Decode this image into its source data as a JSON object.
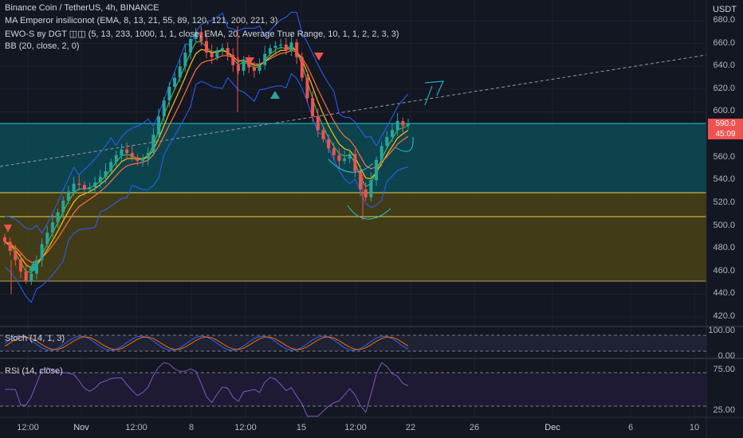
{
  "header": {
    "title": "Binance Coin / TetherUS, 4h, BINANCE",
    "indicator1": "MA Emperor insiliconot (EMA, 8, 13, 21, 55, 89, 120, 121, 200, 221, 3)",
    "indicator2": "EWO-S вy DGT ◫◫ (5, 13, 233, 1000, 1, 1, close, EMA, 20, Average True Range, 10, 1, 1, 2, 2, 3, 3)",
    "indicator3": "BB (20, close, 2, 0)"
  },
  "price_axis": {
    "currency": "USDT",
    "ticks": [
      "680.0",
      "660.0",
      "640.0",
      "620.0",
      "600.0",
      "580.0",
      "560.0",
      "540.0",
      "520.0",
      "500.0",
      "480.0",
      "460.0",
      "440.0",
      "420.0"
    ],
    "last_price": "590.0",
    "countdown": "45:09"
  },
  "stoch_pane": {
    "label": "Stoch (14, 1, 3)",
    "ticks": [
      "100.00",
      "0.00"
    ]
  },
  "rsi_pane": {
    "label": "RSI (14, close)",
    "ticks": [
      "75.00",
      "25.00"
    ]
  },
  "time_axis": {
    "ticks": [
      "12:00",
      "Nov",
      "12:00",
      "8",
      "12:00",
      "15",
      "12:00",
      "22",
      "26",
      "Dec",
      "6",
      "10"
    ]
  },
  "colors": {
    "up": "#26a69a",
    "down": "#ef5350",
    "accent": "#2962ff",
    "zone_top": "#0f5f6a",
    "zone_bottom": "#6b5a12"
  },
  "chart_data": {
    "type": "candlestick",
    "symbol": "BNBUSDT",
    "interval": "4h",
    "ylim": [
      410,
      690
    ],
    "zones": [
      {
        "from": 530,
        "to": 590,
        "color": "teal"
      },
      {
        "from": 453,
        "to": 530,
        "color": "olive"
      }
    ],
    "horizontal_levels": [
      590,
      530,
      509,
      453
    ],
    "close_series": [
      486,
      478,
      470,
      460,
      452,
      458,
      470,
      484,
      494,
      503,
      512,
      522,
      530,
      537,
      536,
      532,
      534,
      538,
      543,
      548,
      556,
      562,
      567,
      564,
      560,
      557,
      559,
      564,
      580,
      596,
      610,
      622,
      630,
      640,
      652,
      664,
      670,
      662,
      652,
      648,
      654,
      656,
      650,
      641,
      636,
      646,
      639,
      636,
      641,
      651,
      656,
      658,
      659,
      654,
      661,
      648,
      630,
      612,
      596,
      584,
      576,
      568,
      562,
      557,
      559,
      563,
      548,
      532,
      525,
      540,
      558,
      570,
      578,
      584,
      592,
      588,
      590
    ]
  }
}
